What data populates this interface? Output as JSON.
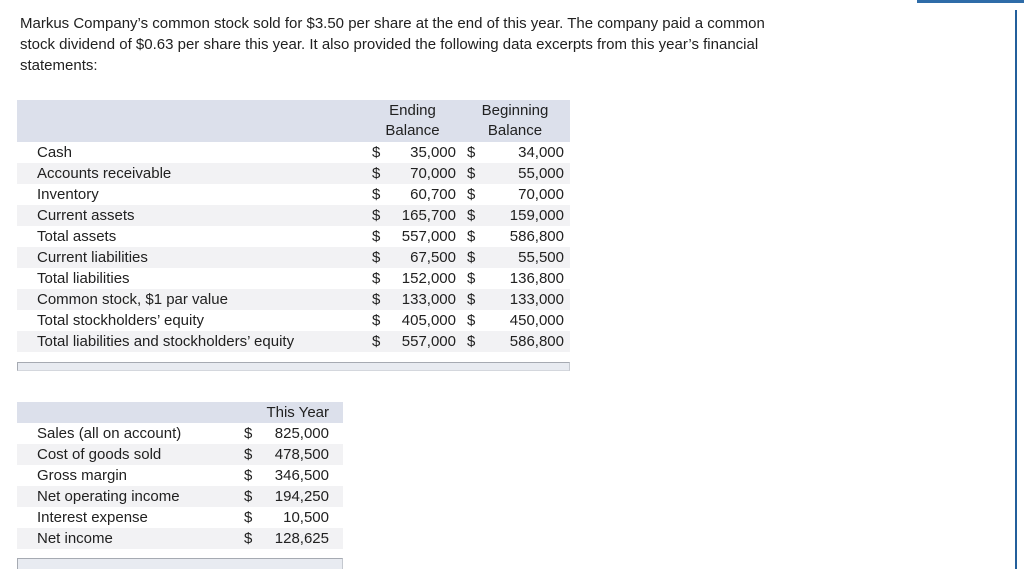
{
  "intro": {
    "lines": [
      "Markus Company’s common stock sold for $3.50 per share at the end of this year. The company paid a common",
      "stock dividend of $0.63 per share this year. It also provided the following data excerpts from this year’s financial",
      "statements:"
    ]
  },
  "currency": "$",
  "balance_table": {
    "headers": {
      "ending": [
        "Ending",
        "Balance"
      ],
      "beginning": [
        "Beginning",
        "Balance"
      ]
    },
    "rows": [
      {
        "label": "Cash",
        "ending": "35,000",
        "beginning": "34,000"
      },
      {
        "label": "Accounts receivable",
        "ending": "70,000",
        "beginning": "55,000"
      },
      {
        "label": "Inventory",
        "ending": "60,700",
        "beginning": "70,000"
      },
      {
        "label": "Current assets",
        "ending": "165,700",
        "beginning": "159,000"
      },
      {
        "label": "Total assets",
        "ending": "557,000",
        "beginning": "586,800"
      },
      {
        "label": "Current liabilities",
        "ending": "67,500",
        "beginning": "55,500"
      },
      {
        "label": "Total liabilities",
        "ending": "152,000",
        "beginning": "136,800"
      },
      {
        "label": "Common stock, $1 par value",
        "ending": "133,000",
        "beginning": "133,000"
      },
      {
        "label": "Total stockholders’ equity",
        "ending": "405,000",
        "beginning": "450,000"
      },
      {
        "label": "Total liabilities and stockholders’ equity",
        "ending": "557,000",
        "beginning": "586,800"
      }
    ]
  },
  "income_table": {
    "header": "This Year",
    "rows": [
      {
        "label": "Sales (all on account)",
        "value": "825,000"
      },
      {
        "label": "Cost of goods sold",
        "value": "478,500"
      },
      {
        "label": "Gross margin",
        "value": "346,500"
      },
      {
        "label": "Net operating income",
        "value": "194,250"
      },
      {
        "label": "Interest expense",
        "value": "10,500"
      },
      {
        "label": "Net income",
        "value": "128,625"
      }
    ]
  },
  "colors": {
    "table_header_bg": "#dce0eb",
    "alt_row_bg": "#f2f2f4",
    "accent_blue_top": "#2e6ca8",
    "accent_blue_right": "#235f9b"
  }
}
